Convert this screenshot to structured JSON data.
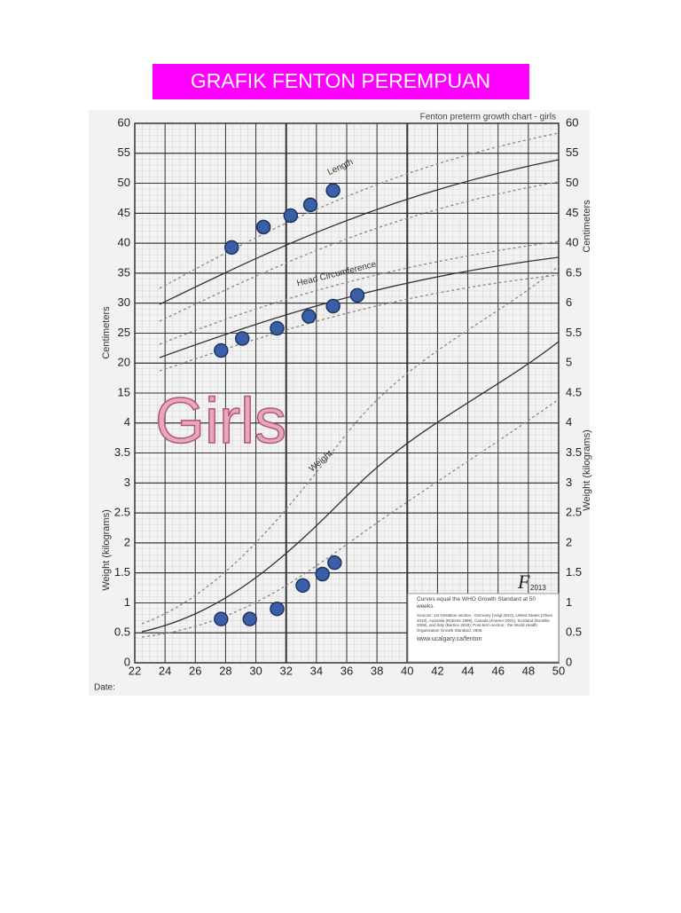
{
  "title": "GRAFIK FENTON PEREMPUAN",
  "chart": {
    "title": "Fenton preterm growth chart - girls",
    "labels": {
      "length": "Length",
      "head": "Head Circumference",
      "weight": "Weight",
      "girls": "Girls",
      "cm_left": "Centimeters",
      "kg_left": "Weight (kilograms)",
      "cm_right": "Centimeters",
      "kg_right": "Weight (kilograms)",
      "date": "Date:",
      "logo": "F",
      "logo_year": "2013"
    },
    "xlim": [
      22,
      50
    ],
    "xticks": [
      22,
      24,
      26,
      28,
      30,
      32,
      34,
      36,
      38,
      40,
      42,
      44,
      46,
      48,
      50
    ],
    "cm_lim": [
      15,
      60
    ],
    "kg_lim": [
      0,
      4.5
    ],
    "cm_ticks_left": [
      60,
      55,
      50,
      45,
      40,
      35,
      30,
      25,
      20,
      15
    ],
    "kg_ticks_left": [
      4,
      3.5,
      3,
      2.5,
      2,
      1.5,
      1,
      0.5,
      0
    ],
    "cm_ticks_right": [
      60,
      55,
      50,
      45,
      40
    ],
    "kg_ticks_right": [
      6.5,
      6,
      5.5,
      5,
      4.5,
      4,
      3.5,
      3,
      2.5,
      2,
      1.5,
      1,
      0.5,
      0
    ],
    "notes": [
      "Curves equal the WHO Growth Standard at 50 weeks.",
      "Sources: 1st Gestation section - Germany (Voigt 2010), United States (Olsen 2010), Australia (Roberts 1999), Canada (Kramer 2001), Scotland (Bonellie 2008), and Italy (Bertino 2010); Post-term section - the World Health Organization Growth Standard, 2006.",
      "www.ucalgary.ca/fenton"
    ],
    "length_points": {
      "x": [
        28.4,
        30.5,
        32.3,
        33.6,
        35.1
      ],
      "y": [
        39.3,
        42.7,
        44.6,
        46.4,
        48.8
      ]
    },
    "head_points": {
      "x": [
        27.7,
        29.1,
        31.4,
        33.5,
        35.1,
        36.7
      ],
      "y": [
        22.1,
        24.1,
        25.8,
        27.8,
        29.5,
        31.3
      ]
    },
    "weight_points": {
      "x": [
        27.7,
        29.6,
        31.4,
        33.1,
        34.4,
        35.2
      ],
      "y": [
        0.73,
        0.73,
        0.9,
        1.29,
        1.48,
        1.67
      ]
    }
  }
}
